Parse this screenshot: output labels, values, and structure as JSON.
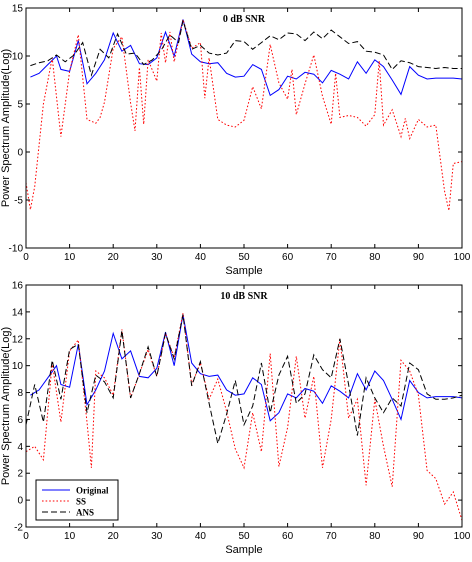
{
  "chart_data": [
    {
      "type": "line",
      "title": "0 dB SNR",
      "xlabel": "Sample",
      "ylabel": "Power Spectrum Amplitude(Log)",
      "xlim": [
        0,
        100
      ],
      "ylim": [
        -10,
        15
      ],
      "xticks": [
        0,
        10,
        20,
        30,
        40,
        50,
        60,
        70,
        80,
        90,
        100
      ],
      "yticks": [
        -10,
        -5,
        0,
        5,
        10,
        15
      ],
      "grid": false,
      "series": [
        {
          "name": "Original",
          "color": "#0000ff",
          "dash": "solid",
          "x": [
            1,
            3,
            5,
            7,
            8,
            10,
            12,
            14,
            16,
            18,
            20,
            22,
            24,
            26,
            28,
            30,
            32,
            34,
            36,
            38,
            40,
            42,
            44,
            46,
            48,
            50,
            52,
            54,
            56,
            58,
            60,
            62,
            64,
            66,
            68,
            70,
            72,
            74,
            76,
            78,
            80,
            82,
            84,
            86,
            88,
            90,
            92,
            94,
            96,
            98,
            100
          ],
          "y": [
            7.8,
            8.2,
            9.1,
            10,
            8.6,
            8.4,
            11.6,
            7.1,
            8.2,
            9.6,
            12.4,
            10.5,
            11.1,
            9.2,
            9.1,
            9.8,
            12.5,
            10,
            13.8,
            10.2,
            9.4,
            9.2,
            9.3,
            8.2,
            7.8,
            7.9,
            9.1,
            8.6,
            5.9,
            6.5,
            7.9,
            7.6,
            8.3,
            8.1,
            7.2,
            8.5,
            8.1,
            7.6,
            9.4,
            8.2,
            9.6,
            8.9,
            7.5,
            6,
            8.9,
            8,
            7.6,
            7.7,
            7.7,
            7.7,
            7.6
          ]
        },
        {
          "name": "SS",
          "color": "#ff0000",
          "dash": "dotted",
          "x": [
            0,
            1,
            2,
            4,
            6,
            8,
            10,
            12,
            14,
            16,
            17,
            18,
            20,
            22,
            24,
            25,
            26,
            27,
            28,
            30,
            31,
            32,
            33,
            34,
            36,
            38,
            40,
            41,
            42,
            44,
            46,
            48,
            50,
            52,
            54,
            56,
            58,
            60,
            61,
            62,
            64,
            66,
            68,
            70,
            71,
            72,
            74,
            76,
            78,
            80,
            81,
            82,
            84,
            86,
            87,
            88,
            90,
            92,
            94,
            96,
            97,
            98,
            100
          ],
          "y": [
            -3.2,
            -6,
            -3.6,
            5,
            9.8,
            1.6,
            8.4,
            12.2,
            3.4,
            3,
            3.6,
            5.2,
            10.8,
            12,
            5.1,
            2.2,
            8.8,
            2.9,
            9.6,
            7.4,
            12.4,
            9.3,
            12.5,
            9.4,
            13.8,
            10.8,
            11.4,
            5.6,
            9.8,
            3.4,
            2.8,
            2.6,
            3.3,
            6.8,
            4.5,
            11.2,
            7.2,
            5.5,
            8.6,
            3.9,
            7.1,
            10.1,
            5.8,
            2.9,
            8.2,
            3.6,
            3.8,
            3.6,
            2.7,
            3.9,
            9.5,
            2.8,
            4.4,
            1.6,
            3.5,
            1.4,
            3.4,
            2.6,
            2.8,
            -4.1,
            -6.1,
            -1.2,
            -1
          ]
        },
        {
          "name": "ANS",
          "color": "#000000",
          "dash": "dashed",
          "x": [
            1,
            3,
            5,
            7,
            9,
            11,
            13,
            15,
            17,
            19,
            21,
            23,
            25,
            27,
            29,
            31,
            33,
            35,
            36,
            38,
            40,
            42,
            44,
            46,
            48,
            50,
            52,
            54,
            56,
            58,
            60,
            62,
            64,
            66,
            68,
            70,
            72,
            74,
            76,
            78,
            80,
            82,
            84,
            86,
            88,
            90,
            92,
            94,
            96,
            98,
            100
          ],
          "y": [
            9,
            9.3,
            9.5,
            10.1,
            9.4,
            10.1,
            11.4,
            8,
            10.7,
            9.8,
            12.3,
            10.2,
            10.3,
            9.1,
            9.6,
            10.6,
            12.2,
            11.4,
            13.7,
            10.7,
            11.1,
            10.3,
            10.1,
            10.3,
            11.6,
            11.5,
            10.7,
            11.4,
            12.1,
            11.7,
            12.4,
            12.3,
            11.6,
            12.5,
            11.8,
            12.7,
            12,
            11.3,
            11.5,
            10.5,
            10.4,
            10.1,
            8.6,
            9.5,
            9.3,
            8.9,
            8.8,
            8.7,
            8.8,
            8.7,
            8.7
          ]
        }
      ]
    },
    {
      "type": "line",
      "title": "10 dB SNR",
      "xlabel": "Sample",
      "ylabel": "Power Spectrum Amplitude(Log)",
      "xlim": [
        0,
        100
      ],
      "ylim": [
        -2,
        16
      ],
      "xticks": [
        0,
        10,
        20,
        30,
        40,
        50,
        60,
        70,
        80,
        90,
        100
      ],
      "yticks": [
        -2,
        0,
        2,
        4,
        6,
        8,
        10,
        12,
        14,
        16
      ],
      "grid": false,
      "legend_position": "bottom-left",
      "series": [
        {
          "name": "Original",
          "color": "#0000ff",
          "dash": "solid",
          "x": [
            1,
            3,
            5,
            7,
            8,
            10,
            12,
            14,
            16,
            18,
            20,
            22,
            24,
            26,
            28,
            30,
            32,
            34,
            36,
            38,
            40,
            42,
            44,
            46,
            48,
            50,
            52,
            54,
            56,
            58,
            60,
            62,
            64,
            66,
            68,
            70,
            72,
            74,
            76,
            78,
            80,
            82,
            84,
            86,
            88,
            90,
            92,
            94,
            96,
            98,
            100
          ],
          "y": [
            7.8,
            8.2,
            9.1,
            10,
            8.6,
            8.4,
            11.6,
            7.1,
            8.2,
            9.6,
            12.4,
            10.5,
            11.1,
            9.2,
            9.1,
            9.8,
            12.5,
            10,
            13.8,
            10.2,
            9.4,
            9.2,
            9.3,
            8.2,
            7.8,
            7.9,
            9.1,
            8.6,
            5.9,
            6.5,
            7.9,
            7.6,
            8.3,
            8.1,
            7.2,
            8.5,
            8.1,
            7.6,
            9.4,
            8.2,
            9.6,
            8.9,
            7.5,
            6,
            8.9,
            8,
            7.6,
            7.7,
            7.7,
            7.7,
            7.6
          ]
        },
        {
          "name": "SS",
          "color": "#ff0000",
          "dash": "dotted",
          "x": [
            0,
            2,
            4,
            6,
            8,
            10,
            12,
            14,
            15,
            16,
            18,
            20,
            22,
            24,
            26,
            28,
            30,
            32,
            34,
            36,
            38,
            40,
            42,
            44,
            46,
            48,
            50,
            52,
            54,
            56,
            58,
            60,
            62,
            64,
            66,
            68,
            70,
            72,
            74,
            76,
            78,
            80,
            82,
            84,
            86,
            88,
            90,
            92,
            94,
            96,
            98,
            100
          ],
          "y": [
            3.6,
            4,
            3,
            10.2,
            5.8,
            11.1,
            11.9,
            5.8,
            2.4,
            9.6,
            9.1,
            7.8,
            12.7,
            7.6,
            9.4,
            11.2,
            9.2,
            12.4,
            10.6,
            13.9,
            8.6,
            10.2,
            7.5,
            9,
            6.6,
            3.8,
            2.4,
            6.5,
            3.6,
            10.9,
            2.5,
            5.4,
            10.7,
            6.1,
            9.2,
            2.4,
            6,
            12,
            6.1,
            7.5,
            1.1,
            7.5,
            4,
            1,
            10.4,
            9.6,
            7.8,
            2.2,
            1.6,
            -0.3,
            0.6,
            -1.5
          ]
        },
        {
          "name": "ANS",
          "color": "#000000",
          "dash": "dashed",
          "x": [
            0,
            2,
            4,
            6,
            8,
            10,
            12,
            14,
            16,
            18,
            20,
            22,
            24,
            26,
            28,
            30,
            32,
            34,
            36,
            38,
            40,
            42,
            44,
            46,
            48,
            50,
            52,
            54,
            56,
            58,
            60,
            62,
            64,
            66,
            68,
            70,
            72,
            74,
            76,
            78,
            80,
            82,
            84,
            86,
            88,
            90,
            92,
            94,
            96,
            98,
            100
          ],
          "y": [
            5.6,
            8.6,
            5.8,
            10.4,
            7.5,
            11.2,
            11.6,
            6.5,
            9.3,
            8.8,
            7.6,
            12.6,
            7.6,
            9.4,
            11.4,
            9.2,
            12.4,
            10.5,
            13.8,
            8.5,
            10.3,
            7.2,
            4.2,
            6.4,
            8.9,
            5.6,
            7,
            10.2,
            6.5,
            9.3,
            10.7,
            7.2,
            7.9,
            10.8,
            9.7,
            9.1,
            12,
            8.6,
            4.8,
            9.1,
            7.6,
            6.5,
            7.6,
            7,
            10.2,
            9.7,
            7.9,
            7.5,
            7.5,
            7.6,
            7.8
          ]
        }
      ]
    }
  ]
}
